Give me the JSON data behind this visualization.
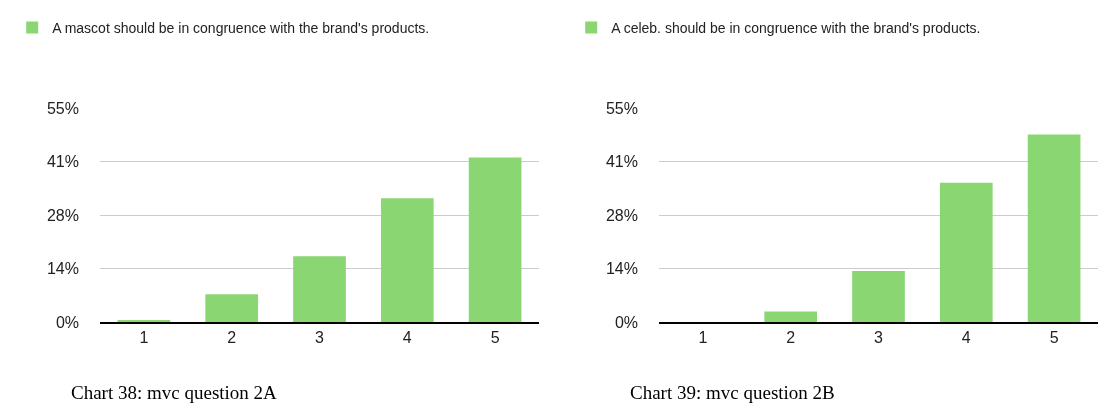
{
  "chart_data": [
    {
      "type": "bar",
      "categories": [
        "1",
        "2",
        "3",
        "4",
        "5"
      ],
      "series": [
        {
          "name": "A mascot should be in congruence with the brand's products.",
          "color": "#8ad672",
          "values": [
            0.5,
            7.1,
            16.9,
            31.8,
            42.3
          ]
        }
      ],
      "ylim": [
        0,
        55
      ],
      "yticks": [
        {
          "value": 0,
          "label": "0%"
        },
        {
          "value": 13.75,
          "label": "14%"
        },
        {
          "value": 27.5,
          "label": "28%"
        },
        {
          "value": 41.25,
          "label": "41%"
        },
        {
          "value": 55,
          "label": "55%"
        }
      ],
      "grid": "y",
      "legend": "top left",
      "annotations": [
        "Chart 38: mvc question 2A"
      ]
    },
    {
      "type": "bar",
      "categories": [
        "1",
        "2",
        "3",
        "4",
        "5"
      ],
      "series": [
        {
          "name": "A celeb. should be in congruence with the brand's products.",
          "color": "#8ad672",
          "values": [
            0,
            2.7,
            13.1,
            35.8,
            48.2
          ]
        }
      ],
      "ylim": [
        0,
        55
      ],
      "yticks": [
        {
          "value": 0,
          "label": "0%"
        },
        {
          "value": 13.75,
          "label": "14%"
        },
        {
          "value": 27.5,
          "label": "28%"
        },
        {
          "value": 41.25,
          "label": "41%"
        },
        {
          "value": 55,
          "label": "55%"
        }
      ],
      "grid": "y",
      "legend": "top left",
      "annotations": [
        "Chart 39: mvc question 2B"
      ]
    }
  ]
}
